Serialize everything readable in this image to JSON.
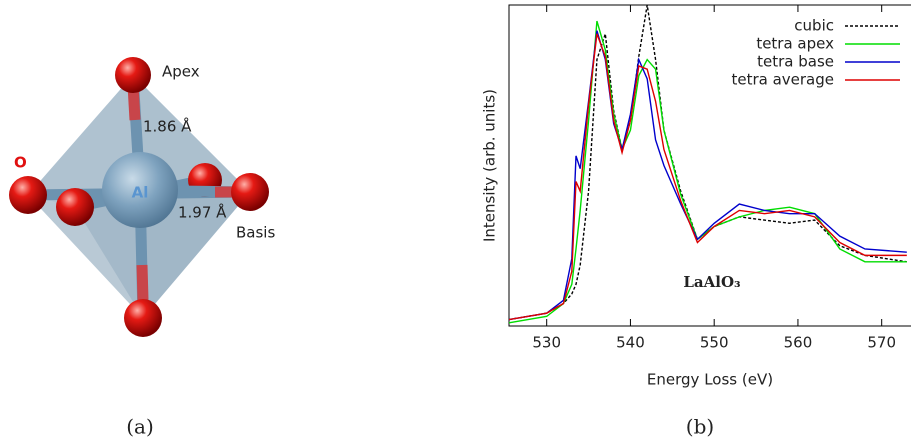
{
  "chart_data": {
    "type": "line",
    "xlabel": "Energy Loss (eV)",
    "ylabel": "Intensity (arb. units)",
    "annotation": "LaAlO₃",
    "x": [
      525.5,
      530,
      532,
      533,
      533.5,
      534,
      535,
      536,
      537,
      538,
      539,
      540,
      541,
      542,
      543,
      544,
      546,
      548,
      550,
      553,
      556,
      559,
      562,
      565,
      568,
      573
    ],
    "series": [
      {
        "name": "cubic",
        "color": "#000000",
        "dash": true,
        "values": [
          0.02,
          0.04,
          0.07,
          0.1,
          0.13,
          0.19,
          0.42,
          0.83,
          0.91,
          0.67,
          0.55,
          0.64,
          0.84,
          1.0,
          0.83,
          0.61,
          0.42,
          0.27,
          0.31,
          0.34,
          0.33,
          0.32,
          0.33,
          0.25,
          0.22,
          0.2
        ]
      },
      {
        "name": "tetra apex",
        "color": "#00dd00",
        "values": [
          0.01,
          0.03,
          0.07,
          0.13,
          0.24,
          0.36,
          0.64,
          0.95,
          0.86,
          0.66,
          0.55,
          0.61,
          0.78,
          0.83,
          0.8,
          0.61,
          0.41,
          0.27,
          0.31,
          0.34,
          0.36,
          0.37,
          0.35,
          0.24,
          0.2,
          0.2
        ]
      },
      {
        "name": "tetra base",
        "color": "#0000cc",
        "values": [
          0.02,
          0.04,
          0.08,
          0.21,
          0.53,
          0.49,
          0.7,
          0.92,
          0.83,
          0.63,
          0.55,
          0.66,
          0.83,
          0.77,
          0.58,
          0.5,
          0.38,
          0.27,
          0.32,
          0.38,
          0.36,
          0.35,
          0.35,
          0.28,
          0.24,
          0.23
        ]
      },
      {
        "name": "tetra average",
        "color": "#dd0000",
        "values": [
          0.02,
          0.04,
          0.07,
          0.17,
          0.45,
          0.42,
          0.69,
          0.91,
          0.84,
          0.64,
          0.54,
          0.64,
          0.81,
          0.8,
          0.7,
          0.55,
          0.39,
          0.26,
          0.31,
          0.36,
          0.35,
          0.36,
          0.34,
          0.26,
          0.22,
          0.22
        ]
      }
    ],
    "xlim": [
      525.5,
      573.5
    ],
    "xticks": [
      530,
      540,
      550,
      560,
      570
    ],
    "ylim": [
      0,
      1
    ],
    "legend": "top-right"
  },
  "panel_a": {
    "apex": "Apex",
    "apex_bond": "1.86 Å",
    "oxygen": "O",
    "aluminium": "Al",
    "basis_bond": "1.97 Å",
    "basis": "Basis"
  },
  "captions": [
    "(a)",
    "(b)"
  ]
}
